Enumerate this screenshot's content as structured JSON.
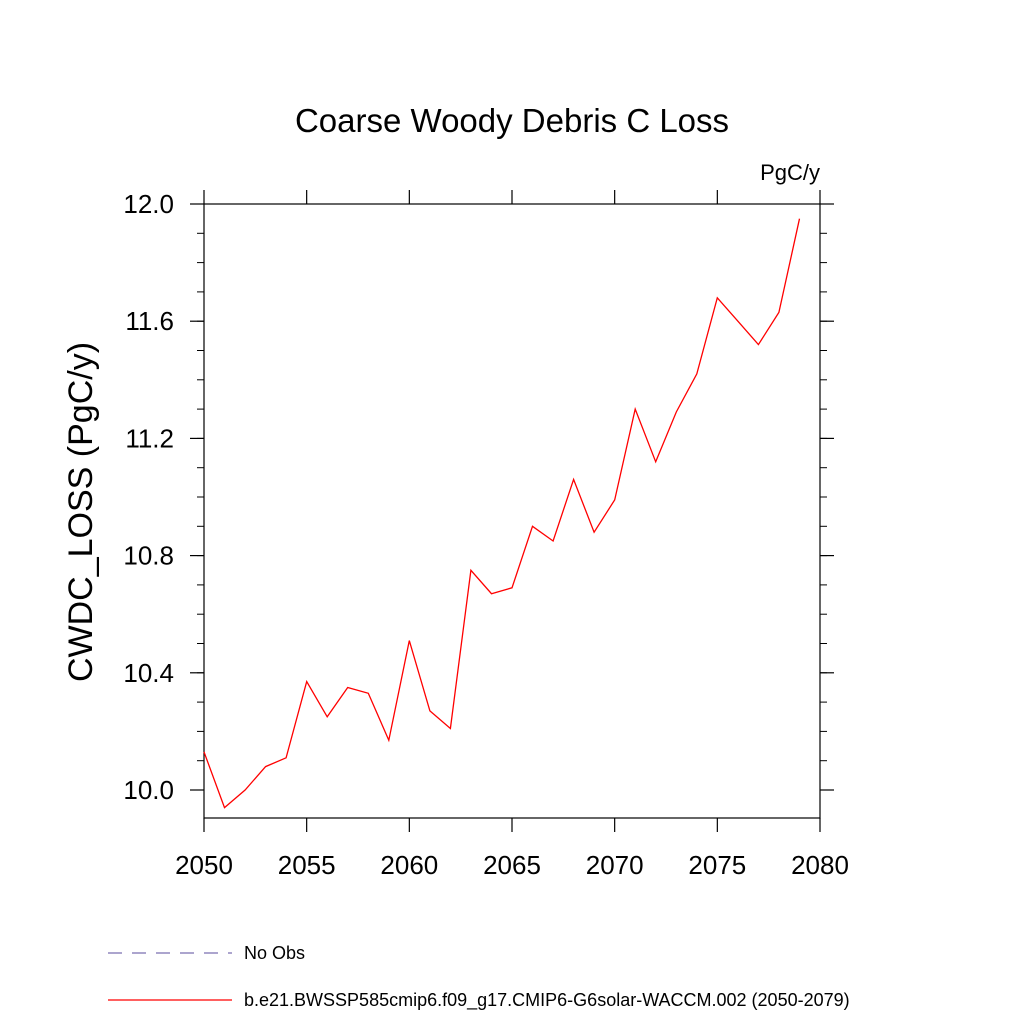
{
  "chart_data": {
    "type": "line",
    "title": "Coarse Woody Debris C Loss",
    "units": "PgC/y",
    "xlabel": "",
    "ylabel": "CWDC_LOSS  (PgC/y)",
    "xlim": [
      2050,
      2080
    ],
    "ylim": [
      9.9,
      12.05
    ],
    "x_ticks": [
      "2050",
      "2055",
      "2060",
      "2065",
      "2070",
      "2075",
      "2080"
    ],
    "y_ticks": [
      "10.0",
      "10.4",
      "10.8",
      "11.2",
      "11.6",
      "12.0"
    ],
    "x_tick_values": [
      2050,
      2055,
      2060,
      2065,
      2070,
      2075,
      2080
    ],
    "y_tick_values": [
      10.0,
      10.4,
      10.8,
      11.2,
      11.6,
      12.0
    ],
    "series": [
      {
        "name": "b.e21.BWSSP585cmip6.f09_g17.CMIP6-G6solar-WACCM.002 (2050-2079)",
        "color": "#ff0000",
        "style": "solid",
        "x": [
          2050,
          2051,
          2052,
          2053,
          2054,
          2055,
          2056,
          2057,
          2058,
          2059,
          2060,
          2061,
          2062,
          2063,
          2064,
          2065,
          2066,
          2067,
          2068,
          2069,
          2070,
          2071,
          2072,
          2073,
          2074,
          2075,
          2076,
          2077,
          2078,
          2079
        ],
        "values": [
          10.13,
          9.94,
          10.0,
          10.08,
          10.11,
          10.37,
          10.25,
          10.35,
          10.33,
          10.17,
          10.51,
          10.27,
          10.21,
          10.75,
          10.67,
          10.69,
          10.9,
          10.85,
          11.06,
          10.88,
          10.99,
          11.3,
          11.12,
          11.29,
          11.42,
          11.68,
          11.6,
          11.52,
          11.63,
          11.95
        ]
      }
    ],
    "legend": {
      "position": "bottom",
      "entries": [
        {
          "label": "No Obs",
          "color": "#7b6fb0",
          "style": "dashed"
        },
        {
          "label": "b.e21.BWSSP585cmip6.f09_g17.CMIP6-G6solar-WACCM.002 (2050-2079)",
          "color": "#ff0000",
          "style": "solid"
        }
      ]
    },
    "grid": false
  }
}
